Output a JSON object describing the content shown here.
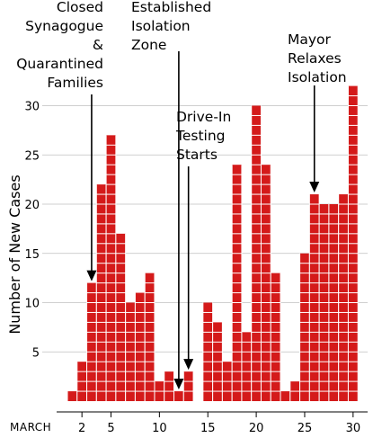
{
  "chart_data": {
    "type": "bar",
    "x": [
      1,
      2,
      3,
      4,
      5,
      6,
      7,
      8,
      9,
      10,
      11,
      12,
      13,
      14,
      15,
      16,
      17,
      18,
      19,
      20,
      21,
      22,
      23,
      24,
      25,
      26,
      27,
      28,
      29,
      30,
      31
    ],
    "values": [
      1,
      4,
      12,
      22,
      27,
      17,
      10,
      11,
      13,
      2,
      3,
      1,
      3,
      null,
      10,
      8,
      4,
      24,
      7,
      30,
      24,
      13,
      1,
      2,
      15,
      21,
      20,
      20,
      21,
      32,
      null
    ],
    "x_ticks": [
      2,
      5,
      10,
      15,
      20,
      25,
      30
    ],
    "x_prefix_label": "MARCH",
    "y_ticks": [
      5,
      10,
      15,
      20,
      25,
      30
    ],
    "ylabel": "Number of New Cases",
    "ylim": [
      0,
      33
    ],
    "xlim": [
      0.5,
      31.5
    ],
    "color": "#d41a1a",
    "annotations": [
      {
        "text": "Closed\nSynagogue\n&\nQuarantined\nFamilies",
        "x": 3
      },
      {
        "text": "Established\nIsolation\nZone",
        "x": 12
      },
      {
        "text": "Drive-In\nTesting\nStarts",
        "x": 13
      },
      {
        "text": "Mayor\nRelaxes\nIsolation",
        "x": 26
      }
    ]
  }
}
